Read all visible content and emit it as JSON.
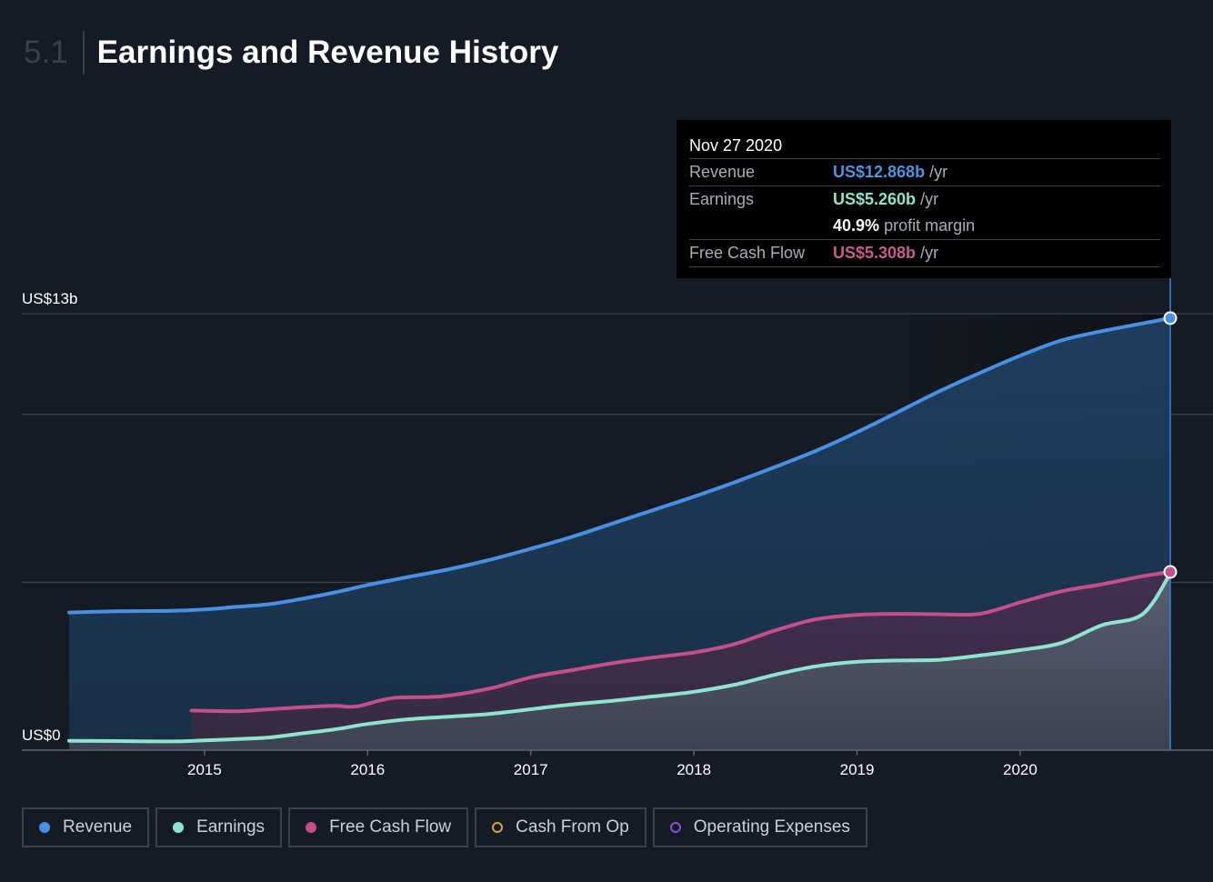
{
  "header": {
    "section_number": "5.1",
    "title": "Earnings and Revenue History"
  },
  "tooltip": {
    "date": "Nov 27 2020",
    "rows": [
      {
        "label": "Revenue",
        "value": "US$12.868b",
        "unit": "/yr"
      },
      {
        "label": "Earnings",
        "value": "US$5.260b",
        "unit": "/yr",
        "margin_value": "40.9%",
        "margin_label": "profit margin"
      },
      {
        "label": "Free Cash Flow",
        "value": "US$5.308b",
        "unit": "/yr"
      }
    ]
  },
  "legend": [
    {
      "label": "Revenue",
      "color": "#4a90e2",
      "filled": true
    },
    {
      "label": "Earnings",
      "color": "#8fe3cf",
      "filled": true
    },
    {
      "label": "Free Cash Flow",
      "color": "#c4508a",
      "filled": true
    },
    {
      "label": "Cash From Op",
      "color": "#d4a253",
      "filled": false
    },
    {
      "label": "Operating Expenses",
      "color": "#8a4fd8",
      "filled": false
    }
  ],
  "chart_data": {
    "type": "area",
    "ylim": [
      0,
      13
    ],
    "y_ticks": [
      {
        "value": 0,
        "label": "US$0"
      },
      {
        "value": 13,
        "label": "US$13b"
      }
    ],
    "y_gridlines": [
      0,
      5,
      10,
      13
    ],
    "xlim": [
      2014.17,
      2020.92
    ],
    "x_ticks": [
      {
        "value": 2015,
        "label": "2015"
      },
      {
        "value": 2016,
        "label": "2016"
      },
      {
        "value": 2017,
        "label": "2017"
      },
      {
        "value": 2018,
        "label": "2018"
      },
      {
        "value": 2019,
        "label": "2019"
      },
      {
        "value": 2020,
        "label": "2020"
      }
    ],
    "highlight_x": 2020.92,
    "series": [
      {
        "name": "Revenue",
        "color": "#4a90e2",
        "x": [
          2014.17,
          2014.5,
          2014.8,
          2015.0,
          2015.2,
          2015.4,
          2015.6,
          2015.8,
          2016.0,
          2016.25,
          2016.5,
          2016.75,
          2017.0,
          2017.25,
          2017.5,
          2017.75,
          2018.0,
          2018.25,
          2018.5,
          2018.75,
          2019.0,
          2019.25,
          2019.5,
          2019.75,
          2020.0,
          2020.25,
          2020.5,
          2020.75,
          2020.92
        ],
        "y": [
          4.1,
          4.14,
          4.15,
          4.19,
          4.27,
          4.35,
          4.51,
          4.7,
          4.92,
          5.16,
          5.39,
          5.67,
          6.0,
          6.35,
          6.75,
          7.15,
          7.55,
          7.98,
          8.44,
          8.92,
          9.47,
          10.07,
          10.68,
          11.23,
          11.75,
          12.2,
          12.48,
          12.71,
          12.868
        ]
      },
      {
        "name": "Earnings",
        "color": "#8fe3cf",
        "x": [
          2014.17,
          2014.5,
          2014.8,
          2015.0,
          2015.2,
          2015.4,
          2015.6,
          2015.8,
          2016.0,
          2016.25,
          2016.5,
          2016.75,
          2017.0,
          2017.25,
          2017.5,
          2017.75,
          2018.0,
          2018.25,
          2018.5,
          2018.75,
          2019.0,
          2019.25,
          2019.5,
          2019.75,
          2020.0,
          2020.25,
          2020.5,
          2020.75,
          2020.92
        ],
        "y": [
          0.28,
          0.27,
          0.26,
          0.29,
          0.33,
          0.38,
          0.5,
          0.62,
          0.78,
          0.92,
          1.0,
          1.08,
          1.22,
          1.36,
          1.47,
          1.6,
          1.74,
          1.95,
          2.25,
          2.5,
          2.63,
          2.67,
          2.69,
          2.82,
          2.98,
          3.19,
          3.72,
          4.05,
          5.26
        ]
      },
      {
        "name": "Free Cash Flow",
        "color": "#c4508a",
        "x": [
          2014.92,
          2015.2,
          2015.4,
          2015.6,
          2015.8,
          2015.93,
          2016.15,
          2016.45,
          2016.75,
          2017.0,
          2017.25,
          2017.5,
          2017.75,
          2018.0,
          2018.25,
          2018.5,
          2018.75,
          2019.0,
          2019.25,
          2019.5,
          2019.75,
          2020.0,
          2020.25,
          2020.5,
          2020.75,
          2020.92
        ],
        "y": [
          1.18,
          1.16,
          1.22,
          1.28,
          1.32,
          1.3,
          1.55,
          1.6,
          1.84,
          2.17,
          2.38,
          2.59,
          2.76,
          2.91,
          3.16,
          3.57,
          3.9,
          4.03,
          4.06,
          4.05,
          4.06,
          4.4,
          4.73,
          4.94,
          5.18,
          5.308
        ]
      }
    ]
  }
}
